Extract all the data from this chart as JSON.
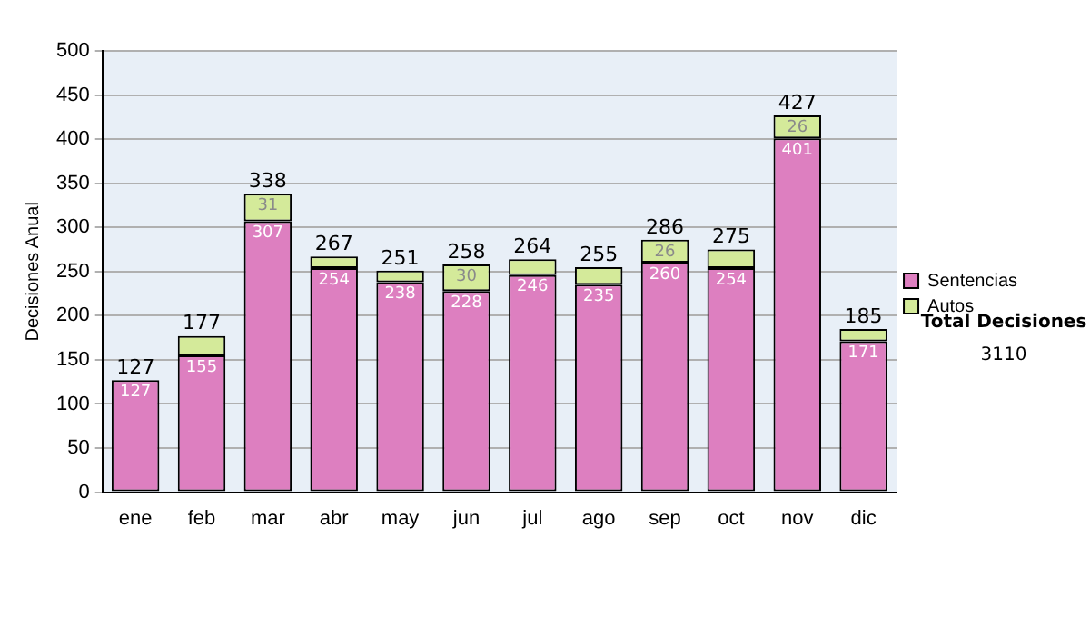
{
  "chart_data": {
    "type": "bar",
    "stacked": true,
    "ylabel": "Decisiones Anual",
    "categories": [
      "ene",
      "feb",
      "mar",
      "abr",
      "may",
      "jun",
      "jul",
      "ago",
      "sep",
      "oct",
      "nov",
      "dic"
    ],
    "series": [
      {
        "name": "Sentencias",
        "color": "#dd7fc0",
        "values": [
          127,
          155,
          307,
          254,
          238,
          228,
          246,
          235,
          260,
          254,
          401,
          171
        ],
        "value_labels": [
          "127",
          "155",
          "307",
          "254",
          "238",
          "228",
          "246",
          "235",
          "260",
          "254",
          "401",
          "171"
        ]
      },
      {
        "name": "Autos",
        "color": "#d4ea9a",
        "values": [
          0,
          22,
          31,
          13,
          13,
          30,
          18,
          20,
          26,
          21,
          26,
          14
        ],
        "value_labels": [
          null,
          null,
          "31",
          null,
          null,
          "30",
          null,
          null,
          "26",
          null,
          "26",
          null
        ]
      }
    ],
    "totals": [
      "127",
      "177",
      "338",
      "267",
      "251",
      "258",
      "264",
      "255",
      "286",
      "275",
      "427",
      "185"
    ],
    "ylim": [
      0,
      500
    ],
    "yticks": [
      0,
      50,
      100,
      150,
      200,
      250,
      300,
      350,
      400,
      450,
      500
    ],
    "grid": "y",
    "legend": "right",
    "annotations": [
      "Total Decisiones",
      "3110"
    ]
  }
}
